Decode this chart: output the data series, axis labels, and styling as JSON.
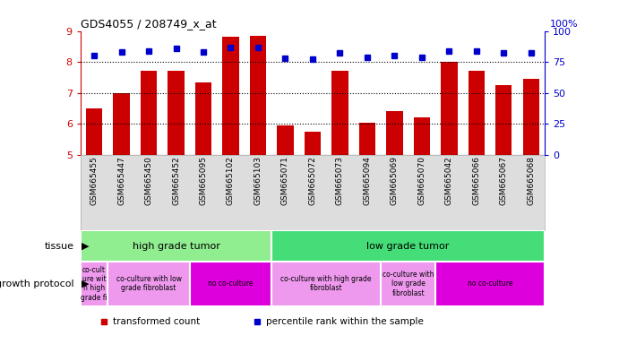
{
  "title": "GDS4055 / 208749_x_at",
  "samples": [
    "GSM665455",
    "GSM665447",
    "GSM665450",
    "GSM665452",
    "GSM665095",
    "GSM665102",
    "GSM665103",
    "GSM665071",
    "GSM665072",
    "GSM665073",
    "GSM665094",
    "GSM665069",
    "GSM665070",
    "GSM665042",
    "GSM665066",
    "GSM665067",
    "GSM665068"
  ],
  "transformed_count": [
    6.5,
    7.0,
    7.7,
    7.7,
    7.35,
    8.8,
    8.85,
    5.95,
    5.75,
    7.7,
    6.05,
    6.4,
    6.2,
    8.0,
    7.7,
    7.25,
    7.45
  ],
  "percentile_rank": [
    80,
    83,
    84,
    86,
    83,
    87,
    87,
    78,
    77,
    82,
    79,
    80,
    79,
    84,
    84,
    82,
    82
  ],
  "ylim_left": [
    5,
    9
  ],
  "ylim_right": [
    0,
    100
  ],
  "yticks_left": [
    5,
    6,
    7,
    8,
    9
  ],
  "yticks_right": [
    0,
    25,
    50,
    75,
    100
  ],
  "bar_color": "#cc0000",
  "dot_color": "#0000cc",
  "tissue_groups": [
    {
      "label": "high grade tumor",
      "start": 0,
      "end": 7,
      "color": "#90ee90"
    },
    {
      "label": "low grade tumor",
      "start": 7,
      "end": 17,
      "color": "#44dd77"
    }
  ],
  "growth_groups": [
    {
      "label": "co-cult\nure wit\nh high\ngrade fi",
      "start": 0,
      "end": 1,
      "color": "#ee99ee"
    },
    {
      "label": "co-culture with low\ngrade fibroblast",
      "start": 1,
      "end": 4,
      "color": "#ee99ee"
    },
    {
      "label": "no co-culture",
      "start": 4,
      "end": 7,
      "color": "#dd00dd"
    },
    {
      "label": "co-culture with high grade\nfibroblast",
      "start": 7,
      "end": 11,
      "color": "#ee99ee"
    },
    {
      "label": "co-culture with\nlow grade\nfibroblast",
      "start": 11,
      "end": 13,
      "color": "#ee99ee"
    },
    {
      "label": "no co-culture",
      "start": 13,
      "end": 17,
      "color": "#dd00dd"
    }
  ],
  "background_color": "#ffffff",
  "axis_label_color_left": "#cc0000",
  "axis_label_color_right": "#0000cc",
  "hline_y": [
    6,
    7,
    8
  ],
  "hline_color": "#000000",
  "xlabels_bg": "#dddddd",
  "legend_label1": "transformed count",
  "legend_label2": "percentile rank within the sample",
  "tissue_row_label": "tissue",
  "growth_row_label": "growth protocol"
}
